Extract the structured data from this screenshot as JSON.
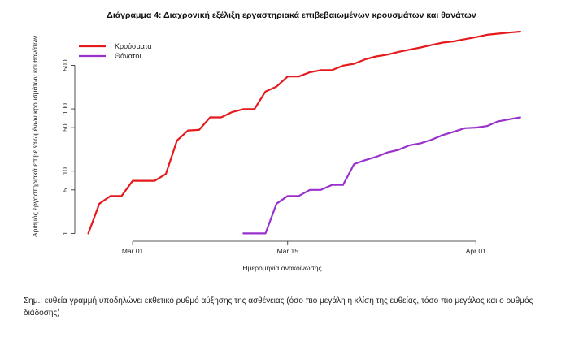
{
  "chart_data": {
    "type": "line",
    "title": "Διάγραμμα 4: Διαχρονική εξέλιξη εργαστηριακά επιβεβαιωμένων κρουσμάτων και θανάτων",
    "xlabel": "Ημερομηνία ανακοίνωσης",
    "ylabel": "Αριθμός εργαστηριακά επιβεβαιωμένων κρουσμάτων και θανάτων",
    "y_scale": "log",
    "ylim": [
      0.75,
      1900
    ],
    "yticks": [
      1,
      5,
      10,
      50,
      100,
      500
    ],
    "ytick_labels": [
      "1",
      "5",
      "10",
      "50",
      "100",
      "500"
    ],
    "xlim": [
      "2020-02-25",
      "2020-04-07"
    ],
    "xticks": [
      "2020-03-01",
      "2020-03-15",
      "2020-04-01"
    ],
    "xtick_labels": [
      "Mar 01",
      "Mar 15",
      "Apr 01"
    ],
    "grid": false,
    "legend_position": "top-left",
    "series": [
      {
        "name": "Κρούσματα",
        "color": "#e41a1c",
        "x": [
          "2020-02-26",
          "2020-02-27",
          "2020-02-28",
          "2020-02-29",
          "2020-03-01",
          "2020-03-02",
          "2020-03-03",
          "2020-03-04",
          "2020-03-05",
          "2020-03-06",
          "2020-03-07",
          "2020-03-08",
          "2020-03-09",
          "2020-03-10",
          "2020-03-11",
          "2020-03-12",
          "2020-03-13",
          "2020-03-14",
          "2020-03-15",
          "2020-03-16",
          "2020-03-17",
          "2020-03-18",
          "2020-03-19",
          "2020-03-20",
          "2020-03-21",
          "2020-03-22",
          "2020-03-23",
          "2020-03-24",
          "2020-03-25",
          "2020-03-26",
          "2020-03-27",
          "2020-03-28",
          "2020-03-29",
          "2020-03-30",
          "2020-03-31",
          "2020-04-01",
          "2020-04-02",
          "2020-04-03",
          "2020-04-04",
          "2020-04-05"
        ],
        "values": [
          1,
          3,
          4,
          4,
          7,
          7,
          7,
          9,
          31,
          45,
          46,
          73,
          73,
          89,
          99,
          99,
          190,
          228,
          331,
          331,
          387,
          418,
          418,
          495,
          530,
          624,
          695,
          743,
          821,
          892,
          966,
          1061,
          1156,
          1212,
          1314,
          1415,
          1544,
          1613,
          1673,
          1735
        ]
      },
      {
        "name": "Θάνατοι",
        "color": "#9932cc",
        "x": [
          "2020-03-11",
          "2020-03-12",
          "2020-03-13",
          "2020-03-14",
          "2020-03-15",
          "2020-03-16",
          "2020-03-17",
          "2020-03-18",
          "2020-03-19",
          "2020-03-20",
          "2020-03-21",
          "2020-03-22",
          "2020-03-23",
          "2020-03-24",
          "2020-03-25",
          "2020-03-26",
          "2020-03-27",
          "2020-03-28",
          "2020-03-29",
          "2020-03-30",
          "2020-03-31",
          "2020-04-01",
          "2020-04-02",
          "2020-04-03",
          "2020-04-04",
          "2020-04-05"
        ],
        "values": [
          1,
          1,
          1,
          3,
          4,
          4,
          5,
          5,
          6,
          6,
          13,
          15,
          17,
          20,
          22,
          26,
          28,
          32,
          38,
          43,
          49,
          50,
          53,
          63,
          68,
          73
        ]
      }
    ]
  },
  "note": "Σημ.: ευθεία γραμμή υποδηλώνει εκθετικό ρυθμό αύξησης της ασθένειας (όσο πιο μεγάλη η κλίση της ευθείας, τόσο πιο μεγάλος και ο ρυθμός διάδοσης)"
}
